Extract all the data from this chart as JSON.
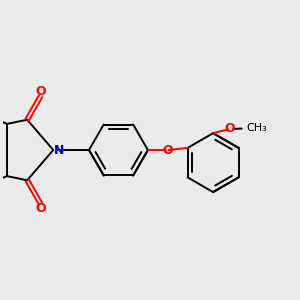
{
  "background_color": "#ebebeb",
  "bond_color": "#000000",
  "N_color": "#0000cc",
  "O_color": "#ff0000",
  "bond_width": 1.4,
  "figsize": [
    3.0,
    3.0
  ],
  "dpi": 100,
  "xlim": [
    -1.2,
    5.8
  ],
  "ylim": [
    -2.2,
    2.2
  ]
}
